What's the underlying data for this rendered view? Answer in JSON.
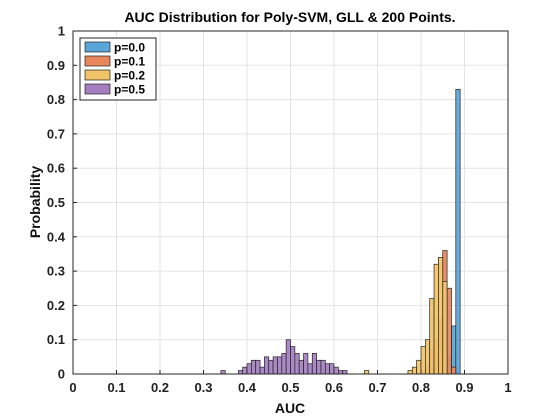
{
  "chart_data": {
    "type": "bar",
    "title": "AUC Distribution for Poly-SVM, GLL & 200 Points.",
    "xlabel": "AUC",
    "ylabel": "Probability",
    "xlim": [
      0,
      1
    ],
    "ylim": [
      0,
      1
    ],
    "xticks": [
      "0",
      "0.1",
      "0.2",
      "0.3",
      "0.4",
      "0.5",
      "0.6",
      "0.7",
      "0.8",
      "0.9",
      "1"
    ],
    "yticks": [
      "0",
      "0.1",
      "0.2",
      "0.3",
      "0.4",
      "0.5",
      "0.6",
      "0.7",
      "0.8",
      "0.9",
      "1"
    ],
    "grid": true,
    "legend_position": "top-left",
    "bin_width": 0.01,
    "series": [
      {
        "name": "p=0.0",
        "color": "#5aa5d8",
        "bins": [
          {
            "x": 0.855,
            "y": 0.02
          },
          {
            "x": 0.865,
            "y": 0.05
          },
          {
            "x": 0.875,
            "y": 0.14
          },
          {
            "x": 0.885,
            "y": 0.83
          }
        ]
      },
      {
        "name": "p=0.1",
        "color": "#e8875a",
        "bins": [
          {
            "x": 0.805,
            "y": 0.01
          },
          {
            "x": 0.815,
            "y": 0.03
          },
          {
            "x": 0.825,
            "y": 0.07
          },
          {
            "x": 0.835,
            "y": 0.1
          },
          {
            "x": 0.845,
            "y": 0.16
          },
          {
            "x": 0.855,
            "y": 0.36
          },
          {
            "x": 0.865,
            "y": 0.25
          },
          {
            "x": 0.875,
            "y": 0.02
          }
        ]
      },
      {
        "name": "p=0.2",
        "color": "#f2c46a",
        "bins": [
          {
            "x": 0.675,
            "y": 0.01
          },
          {
            "x": 0.775,
            "y": 0.01
          },
          {
            "x": 0.785,
            "y": 0.02
          },
          {
            "x": 0.795,
            "y": 0.04
          },
          {
            "x": 0.805,
            "y": 0.08
          },
          {
            "x": 0.815,
            "y": 0.1
          },
          {
            "x": 0.825,
            "y": 0.22
          },
          {
            "x": 0.835,
            "y": 0.32
          },
          {
            "x": 0.845,
            "y": 0.34
          },
          {
            "x": 0.855,
            "y": 0.27
          }
        ]
      },
      {
        "name": "p=0.5",
        "color": "#a47fbf",
        "bins": [
          {
            "x": 0.345,
            "y": 0.01
          },
          {
            "x": 0.385,
            "y": 0.01
          },
          {
            "x": 0.395,
            "y": 0.02
          },
          {
            "x": 0.405,
            "y": 0.03
          },
          {
            "x": 0.415,
            "y": 0.04
          },
          {
            "x": 0.425,
            "y": 0.04
          },
          {
            "x": 0.435,
            "y": 0.02
          },
          {
            "x": 0.445,
            "y": 0.05
          },
          {
            "x": 0.455,
            "y": 0.04
          },
          {
            "x": 0.465,
            "y": 0.05
          },
          {
            "x": 0.475,
            "y": 0.05
          },
          {
            "x": 0.485,
            "y": 0.06
          },
          {
            "x": 0.495,
            "y": 0.1
          },
          {
            "x": 0.505,
            "y": 0.08
          },
          {
            "x": 0.515,
            "y": 0.06
          },
          {
            "x": 0.525,
            "y": 0.04
          },
          {
            "x": 0.535,
            "y": 0.06
          },
          {
            "x": 0.545,
            "y": 0.03
          },
          {
            "x": 0.555,
            "y": 0.06
          },
          {
            "x": 0.565,
            "y": 0.04
          },
          {
            "x": 0.575,
            "y": 0.04
          },
          {
            "x": 0.585,
            "y": 0.03
          },
          {
            "x": 0.595,
            "y": 0.03
          },
          {
            "x": 0.605,
            "y": 0.02
          },
          {
            "x": 0.615,
            "y": 0.01
          },
          {
            "x": 0.625,
            "y": 0.01
          }
        ]
      }
    ]
  }
}
